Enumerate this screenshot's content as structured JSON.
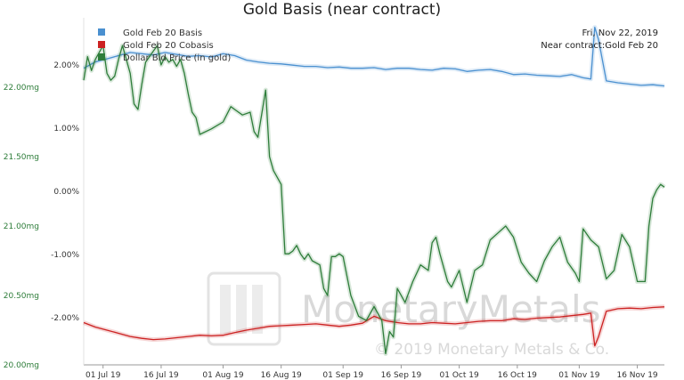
{
  "chart_data": {
    "type": "line",
    "title": "Gold Basis (near contract)",
    "corner_text": [
      "Fri, Nov 22, 2019",
      "Near contract:Gold Feb 20"
    ],
    "watermark": {
      "text": "MonetaryMetals",
      "copyright": "© 2019 Monetary Metals & Co."
    },
    "x_ticks": [
      "01 Jul 19",
      "16 Jul 19",
      "01 Aug 19",
      "16 Aug 19",
      "01 Sep 19",
      "16 Sep 19",
      "01 Oct 19",
      "16 Oct 19",
      "01 Nov 19",
      "16 Nov 19"
    ],
    "x_tick_dates": [
      "2019-07-01",
      "2019-07-16",
      "2019-08-01",
      "2019-08-16",
      "2019-09-01",
      "2019-09-16",
      "2019-10-01",
      "2019-10-16",
      "2019-11-01",
      "2019-11-16"
    ],
    "x_range": [
      "2019-06-26",
      "2019-11-23"
    ],
    "y_left": {
      "ticks": [
        "20.00mg",
        "20.50mg",
        "21.00mg",
        "21.50mg",
        "22.00mg"
      ],
      "values": [
        20.0,
        20.5,
        21.0,
        21.5,
        22.0
      ],
      "range": [
        20.0,
        22.5
      ]
    },
    "y_right": {
      "ticks": [
        "-2.00%",
        "-1.00%",
        "0.00%",
        "1.00%",
        "2.00%"
      ],
      "values": [
        -2.0,
        -1.0,
        0.0,
        1.0,
        2.0
      ],
      "range": [
        -2.75,
        2.75
      ]
    },
    "colors": {
      "basis": "#4a90d0",
      "cobasis": "#cc2222",
      "dollar": "#2e7d3a"
    },
    "series": [
      {
        "name": "Gold Feb 20 Basis",
        "axis": "right",
        "color": "#4a90d0",
        "points": [
          [
            "2019-06-26",
            1.95
          ],
          [
            "2019-06-29",
            2.05
          ],
          [
            "2019-07-02",
            2.1
          ],
          [
            "2019-07-05",
            2.15
          ],
          [
            "2019-07-08",
            2.2
          ],
          [
            "2019-07-11",
            2.18
          ],
          [
            "2019-07-14",
            2.16
          ],
          [
            "2019-07-17",
            2.2
          ],
          [
            "2019-07-20",
            2.17
          ],
          [
            "2019-07-23",
            2.14
          ],
          [
            "2019-07-26",
            2.15
          ],
          [
            "2019-07-29",
            2.13
          ],
          [
            "2019-08-01",
            2.18
          ],
          [
            "2019-08-04",
            2.15
          ],
          [
            "2019-08-07",
            2.08
          ],
          [
            "2019-08-10",
            2.05
          ],
          [
            "2019-08-13",
            2.03
          ],
          [
            "2019-08-16",
            2.02
          ],
          [
            "2019-08-19",
            2.0
          ],
          [
            "2019-08-22",
            1.98
          ],
          [
            "2019-08-25",
            1.98
          ],
          [
            "2019-08-28",
            1.96
          ],
          [
            "2019-08-31",
            1.97
          ],
          [
            "2019-09-03",
            1.95
          ],
          [
            "2019-09-06",
            1.95
          ],
          [
            "2019-09-09",
            1.96
          ],
          [
            "2019-09-12",
            1.93
          ],
          [
            "2019-09-15",
            1.95
          ],
          [
            "2019-09-18",
            1.95
          ],
          [
            "2019-09-21",
            1.93
          ],
          [
            "2019-09-24",
            1.92
          ],
          [
            "2019-09-27",
            1.95
          ],
          [
            "2019-09-30",
            1.94
          ],
          [
            "2019-10-03",
            1.9
          ],
          [
            "2019-10-06",
            1.92
          ],
          [
            "2019-10-09",
            1.93
          ],
          [
            "2019-10-12",
            1.9
          ],
          [
            "2019-10-15",
            1.85
          ],
          [
            "2019-10-18",
            1.86
          ],
          [
            "2019-10-21",
            1.84
          ],
          [
            "2019-10-24",
            1.83
          ],
          [
            "2019-10-27",
            1.82
          ],
          [
            "2019-10-30",
            1.85
          ],
          [
            "2019-11-02",
            1.8
          ],
          [
            "2019-11-04",
            1.78
          ],
          [
            "2019-11-05",
            2.6
          ],
          [
            "2019-11-06",
            2.4
          ],
          [
            "2019-11-08",
            1.75
          ],
          [
            "2019-11-11",
            1.72
          ],
          [
            "2019-11-14",
            1.7
          ],
          [
            "2019-11-17",
            1.68
          ],
          [
            "2019-11-20",
            1.69
          ],
          [
            "2019-11-23",
            1.67
          ]
        ]
      },
      {
        "name": "Gold Feb 20 Cobasis",
        "axis": "right",
        "color": "#cc2222",
        "points": [
          [
            "2019-06-26",
            -2.08
          ],
          [
            "2019-06-29",
            -2.15
          ],
          [
            "2019-07-02",
            -2.2
          ],
          [
            "2019-07-05",
            -2.25
          ],
          [
            "2019-07-08",
            -2.3
          ],
          [
            "2019-07-11",
            -2.33
          ],
          [
            "2019-07-14",
            -2.35
          ],
          [
            "2019-07-17",
            -2.34
          ],
          [
            "2019-07-20",
            -2.32
          ],
          [
            "2019-07-23",
            -2.3
          ],
          [
            "2019-07-26",
            -2.28
          ],
          [
            "2019-07-29",
            -2.29
          ],
          [
            "2019-08-01",
            -2.28
          ],
          [
            "2019-08-04",
            -2.24
          ],
          [
            "2019-08-07",
            -2.2
          ],
          [
            "2019-08-10",
            -2.17
          ],
          [
            "2019-08-13",
            -2.14
          ],
          [
            "2019-08-16",
            -2.13
          ],
          [
            "2019-08-19",
            -2.12
          ],
          [
            "2019-08-22",
            -2.11
          ],
          [
            "2019-08-25",
            -2.1
          ],
          [
            "2019-08-28",
            -2.12
          ],
          [
            "2019-08-31",
            -2.14
          ],
          [
            "2019-09-03",
            -2.12
          ],
          [
            "2019-09-06",
            -2.09
          ],
          [
            "2019-09-09",
            -1.98
          ],
          [
            "2019-09-12",
            -2.05
          ],
          [
            "2019-09-15",
            -2.08
          ],
          [
            "2019-09-18",
            -2.1
          ],
          [
            "2019-09-21",
            -2.1
          ],
          [
            "2019-09-24",
            -2.08
          ],
          [
            "2019-09-27",
            -2.09
          ],
          [
            "2019-09-30",
            -2.1
          ],
          [
            "2019-10-03",
            -2.08
          ],
          [
            "2019-10-06",
            -2.06
          ],
          [
            "2019-10-09",
            -2.05
          ],
          [
            "2019-10-12",
            -2.05
          ],
          [
            "2019-10-15",
            -2.02
          ],
          [
            "2019-10-18",
            -2.03
          ],
          [
            "2019-10-21",
            -2.01
          ],
          [
            "2019-10-24",
            -2.0
          ],
          [
            "2019-10-27",
            -1.99
          ],
          [
            "2019-10-30",
            -1.97
          ],
          [
            "2019-11-02",
            -1.95
          ],
          [
            "2019-11-04",
            -1.93
          ],
          [
            "2019-11-05",
            -2.45
          ],
          [
            "2019-11-06",
            -2.3
          ],
          [
            "2019-11-08",
            -1.9
          ],
          [
            "2019-11-11",
            -1.86
          ],
          [
            "2019-11-14",
            -1.85
          ],
          [
            "2019-11-17",
            -1.86
          ],
          [
            "2019-11-20",
            -1.84
          ],
          [
            "2019-11-23",
            -1.83
          ]
        ]
      },
      {
        "name": "Dollar Bid Price (in gold)",
        "axis": "left",
        "color": "#2e7d3a",
        "points": [
          [
            "2019-06-26",
            22.05
          ],
          [
            "2019-06-27",
            22.22
          ],
          [
            "2019-06-28",
            22.12
          ],
          [
            "2019-06-29",
            22.2
          ],
          [
            "2019-07-01",
            22.3
          ],
          [
            "2019-07-02",
            22.1
          ],
          [
            "2019-07-03",
            22.05
          ],
          [
            "2019-07-04",
            22.08
          ],
          [
            "2019-07-05",
            22.2
          ],
          [
            "2019-07-06",
            22.3
          ],
          [
            "2019-07-08",
            22.1
          ],
          [
            "2019-07-09",
            21.88
          ],
          [
            "2019-07-10",
            21.84
          ],
          [
            "2019-07-11",
            22.02
          ],
          [
            "2019-07-12",
            22.18
          ],
          [
            "2019-07-14",
            22.26
          ],
          [
            "2019-07-15",
            22.3
          ],
          [
            "2019-07-16",
            22.16
          ],
          [
            "2019-07-17",
            22.22
          ],
          [
            "2019-07-18",
            22.18
          ],
          [
            "2019-07-19",
            22.2
          ],
          [
            "2019-07-20",
            22.15
          ],
          [
            "2019-07-21",
            22.2
          ],
          [
            "2019-07-22",
            22.1
          ],
          [
            "2019-07-23",
            21.95
          ],
          [
            "2019-07-24",
            21.82
          ],
          [
            "2019-07-25",
            21.78
          ],
          [
            "2019-07-26",
            21.66
          ],
          [
            "2019-07-29",
            21.7
          ],
          [
            "2019-08-01",
            21.75
          ],
          [
            "2019-08-03",
            21.86
          ],
          [
            "2019-08-04",
            21.84
          ],
          [
            "2019-08-06",
            21.8
          ],
          [
            "2019-08-08",
            21.82
          ],
          [
            "2019-08-09",
            21.68
          ],
          [
            "2019-08-10",
            21.64
          ],
          [
            "2019-08-12",
            21.98
          ],
          [
            "2019-08-13",
            21.5
          ],
          [
            "2019-08-14",
            21.4
          ],
          [
            "2019-08-16",
            21.3
          ],
          [
            "2019-08-17",
            20.8
          ],
          [
            "2019-08-18",
            20.8
          ],
          [
            "2019-08-19",
            20.82
          ],
          [
            "2019-08-20",
            20.86
          ],
          [
            "2019-08-21",
            20.8
          ],
          [
            "2019-08-22",
            20.76
          ],
          [
            "2019-08-23",
            20.8
          ],
          [
            "2019-08-24",
            20.75
          ],
          [
            "2019-08-26",
            20.72
          ],
          [
            "2019-08-27",
            20.55
          ],
          [
            "2019-08-28",
            20.5
          ],
          [
            "2019-08-29",
            20.78
          ],
          [
            "2019-08-30",
            20.78
          ],
          [
            "2019-08-31",
            20.8
          ],
          [
            "2019-09-01",
            20.78
          ],
          [
            "2019-09-03",
            20.5
          ],
          [
            "2019-09-05",
            20.35
          ],
          [
            "2019-09-07",
            20.32
          ],
          [
            "2019-09-09",
            20.42
          ],
          [
            "2019-09-11",
            20.32
          ],
          [
            "2019-09-12",
            20.08
          ],
          [
            "2019-09-13",
            20.24
          ],
          [
            "2019-09-14",
            20.2
          ],
          [
            "2019-09-15",
            20.55
          ],
          [
            "2019-09-17",
            20.45
          ],
          [
            "2019-09-19",
            20.6
          ],
          [
            "2019-09-21",
            20.72
          ],
          [
            "2019-09-23",
            20.68
          ],
          [
            "2019-09-24",
            20.88
          ],
          [
            "2019-09-25",
            20.92
          ],
          [
            "2019-09-26",
            20.8
          ],
          [
            "2019-09-28",
            20.6
          ],
          [
            "2019-09-29",
            20.56
          ],
          [
            "2019-10-01",
            20.68
          ],
          [
            "2019-10-03",
            20.45
          ],
          [
            "2019-10-05",
            20.68
          ],
          [
            "2019-10-07",
            20.72
          ],
          [
            "2019-10-09",
            20.9
          ],
          [
            "2019-10-11",
            20.95
          ],
          [
            "2019-10-13",
            21.0
          ],
          [
            "2019-10-15",
            20.92
          ],
          [
            "2019-10-17",
            20.74
          ],
          [
            "2019-10-19",
            20.66
          ],
          [
            "2019-10-21",
            20.6
          ],
          [
            "2019-10-23",
            20.75
          ],
          [
            "2019-10-25",
            20.85
          ],
          [
            "2019-10-27",
            20.92
          ],
          [
            "2019-10-29",
            20.74
          ],
          [
            "2019-10-31",
            20.66
          ],
          [
            "2019-11-01",
            20.6
          ],
          [
            "2019-11-02",
            20.98
          ],
          [
            "2019-11-04",
            20.9
          ],
          [
            "2019-11-06",
            20.85
          ],
          [
            "2019-11-08",
            20.62
          ],
          [
            "2019-11-10",
            20.68
          ],
          [
            "2019-11-12",
            20.94
          ],
          [
            "2019-11-14",
            20.85
          ],
          [
            "2019-11-16",
            20.6
          ],
          [
            "2019-11-18",
            20.6
          ],
          [
            "2019-11-19",
            21.0
          ],
          [
            "2019-11-20",
            21.2
          ],
          [
            "2019-11-21",
            21.26
          ],
          [
            "2019-11-22",
            21.3
          ],
          [
            "2019-11-23",
            21.28
          ]
        ]
      }
    ]
  }
}
